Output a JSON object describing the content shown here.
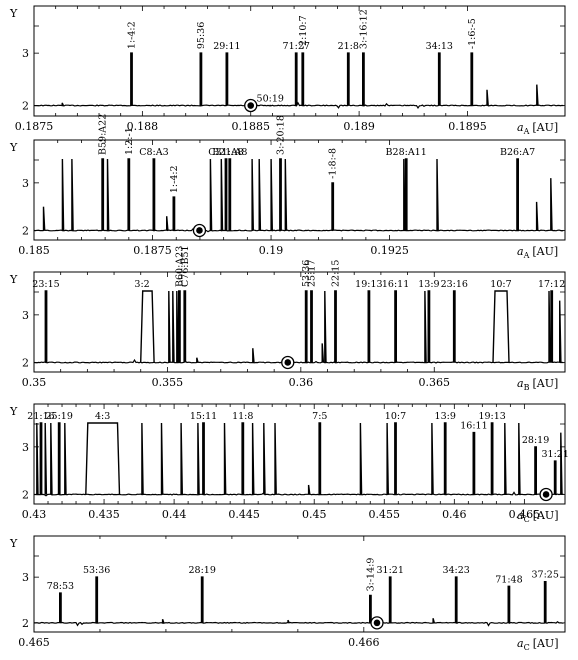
{
  "chart_data": [
    {
      "type": "line",
      "ylabel": "Υ",
      "xlabel": "a_A [AU]",
      "xlabel_main": "a",
      "xlabel_sub": "A",
      "xlabel_unit": "[AU]",
      "xlim": [
        0.1875,
        0.18995
      ],
      "ylim": [
        1.8,
        3.9
      ],
      "xticks": [
        0.1875,
        0.188,
        0.1885,
        0.189,
        0.1895
      ],
      "xtick_labels": [
        "0.1875",
        "0.188",
        "0.1885",
        "0.189",
        "0.1895"
      ],
      "yticks": [
        2,
        3
      ],
      "ytick_labels": [
        "2",
        "3"
      ],
      "circle": {
        "x": 0.1885,
        "y": 2.0
      },
      "resonances": [
        {
          "label": "1:-4:2",
          "x": 0.18795,
          "y": 3.0,
          "rotate": true
        },
        {
          "label": "95:36",
          "x": 0.18827,
          "y": 3.0,
          "rotate": true
        },
        {
          "label": "29:11",
          "x": 0.18839,
          "y": 3.0,
          "rotate": false
        },
        {
          "label": "50:19",
          "x": 0.18859,
          "y": 2.0,
          "rotate": false
        },
        {
          "label": "71:27",
          "x": 0.18871,
          "y": 3.0,
          "rotate": false
        },
        {
          "label": "-2:10:7",
          "x": 0.18874,
          "y": 3.0,
          "rotate": true
        },
        {
          "label": "21:8",
          "x": 0.18895,
          "y": 3.0,
          "rotate": false
        },
        {
          "label": "3:-16:12",
          "x": 0.18902,
          "y": 3.0,
          "rotate": true
        },
        {
          "label": "34:13",
          "x": 0.18937,
          "y": 3.0,
          "rotate": false
        },
        {
          "label": "-1:6:-5",
          "x": 0.18952,
          "y": 3.0,
          "rotate": true
        }
      ],
      "minor_spikes": [
        {
          "x": 0.18959,
          "y": 2.3
        },
        {
          "x": 0.18982,
          "y": 2.4
        },
        {
          "x": 0.18763,
          "y": 2.05
        }
      ]
    },
    {
      "type": "line",
      "ylabel": "Υ",
      "xlabel": "a_A [AU]",
      "xlabel_main": "a",
      "xlabel_sub": "A",
      "xlabel_unit": "[AU]",
      "xlim": [
        0.185,
        0.1962
      ],
      "ylim": [
        1.8,
        3.9
      ],
      "xticks": [
        0.185,
        0.1875,
        0.19,
        0.1925
      ],
      "xtick_labels": [
        "0.185",
        "0.1875",
        "0.19",
        "0.1925"
      ],
      "yticks": [
        2,
        3
      ],
      "ytick_labels": [
        "2",
        "3"
      ],
      "circle": {
        "x": 0.18849,
        "y": 2.0
      },
      "resonances": [
        {
          "label": "B59:A22",
          "x": 0.18645,
          "y": 3.5,
          "rotate": true
        },
        {
          "label": "1:2:-1",
          "x": 0.187,
          "y": 3.5,
          "rotate": true
        },
        {
          "label": "C8:A3",
          "x": 0.18753,
          "y": 3.5,
          "rotate": false
        },
        {
          "label": "1:-4:2",
          "x": 0.18795,
          "y": 2.7,
          "rotate": true
        },
        {
          "label": "C31:A8",
          "x": 0.18905,
          "y": 3.5,
          "rotate": false
        },
        {
          "label": "B21:A8",
          "x": 0.18913,
          "y": 3.5,
          "rotate": false
        },
        {
          "label": "3:-20:18",
          "x": 0.1902,
          "y": 3.5,
          "rotate": true
        },
        {
          "label": "-1:8:-8",
          "x": 0.1913,
          "y": 3.0,
          "rotate": true
        },
        {
          "label": "B28:A11",
          "x": 0.19285,
          "y": 3.5,
          "rotate": false
        },
        {
          "label": "B26:A7",
          "x": 0.1952,
          "y": 3.5,
          "rotate": false
        }
      ],
      "minor_spikes": [
        {
          "x": 0.1856,
          "y": 3.5
        },
        {
          "x": 0.1858,
          "y": 3.5
        },
        {
          "x": 0.1852,
          "y": 2.5
        },
        {
          "x": 0.18655,
          "y": 3.5
        },
        {
          "x": 0.18872,
          "y": 3.5
        },
        {
          "x": 0.18895,
          "y": 3.5
        },
        {
          "x": 0.1896,
          "y": 3.5
        },
        {
          "x": 0.18975,
          "y": 3.5
        },
        {
          "x": 0.19,
          "y": 3.5
        },
        {
          "x": 0.1903,
          "y": 3.5
        },
        {
          "x": 0.1928,
          "y": 3.5
        },
        {
          "x": 0.1935,
          "y": 3.5
        },
        {
          "x": 0.1956,
          "y": 2.6
        },
        {
          "x": 0.1959,
          "y": 3.1
        },
        {
          "x": 0.1878,
          "y": 2.3
        }
      ]
    },
    {
      "type": "line",
      "ylabel": "Υ",
      "xlabel": "a_B [AU]",
      "xlabel_main": "a",
      "xlabel_sub": "B",
      "xlabel_unit": "[AU]",
      "xlim": [
        0.35,
        0.3699
      ],
      "ylim": [
        1.8,
        3.9
      ],
      "xticks": [
        0.35,
        0.355,
        0.36,
        0.365
      ],
      "xtick_labels": [
        "0.35",
        "0.355",
        "0.36",
        "0.365"
      ],
      "yticks": [
        2,
        3
      ],
      "ytick_labels": [
        "2",
        "3"
      ],
      "circle": {
        "x": 0.35951,
        "y": 2.0
      },
      "resonances": [
        {
          "label": "23:15",
          "x": 0.35045,
          "y": 3.5,
          "rotate": false
        },
        {
          "label": "3:2",
          "x": 0.35405,
          "y": 3.5,
          "rotate": false,
          "plateau": [
            0.354,
            0.3545
          ]
        },
        {
          "label": "B60:A23",
          "x": 0.35545,
          "y": 3.5,
          "rotate": true
        },
        {
          "label": "C76:B51",
          "x": 0.35565,
          "y": 3.5,
          "rotate": true
        },
        {
          "label": "53:36",
          "x": 0.3602,
          "y": 3.5,
          "rotate": true
        },
        {
          "label": "25:17",
          "x": 0.3604,
          "y": 3.5,
          "rotate": true
        },
        {
          "label": "22:15",
          "x": 0.3613,
          "y": 3.5,
          "rotate": true
        },
        {
          "label": "19:13",
          "x": 0.36255,
          "y": 3.5,
          "rotate": false
        },
        {
          "label": "16:11",
          "x": 0.36355,
          "y": 3.5,
          "rotate": false
        },
        {
          "label": "13:9",
          "x": 0.3648,
          "y": 3.5,
          "rotate": false
        },
        {
          "label": "23:16",
          "x": 0.36575,
          "y": 3.5,
          "rotate": false
        },
        {
          "label": "10:7",
          "x": 0.3675,
          "y": 3.5,
          "rotate": false,
          "plateau": [
            0.3672,
            0.3678
          ]
        },
        {
          "label": "17:12",
          "x": 0.3694,
          "y": 3.5,
          "rotate": false
        }
      ],
      "minor_spikes": [
        {
          "x": 0.35505,
          "y": 3.5
        },
        {
          "x": 0.3552,
          "y": 3.5
        },
        {
          "x": 0.35535,
          "y": 3.5
        },
        {
          "x": 0.3609,
          "y": 3.5
        },
        {
          "x": 0.3608,
          "y": 2.4
        },
        {
          "x": 0.36465,
          "y": 3.5
        },
        {
          "x": 0.3693,
          "y": 3.5
        },
        {
          "x": 0.3697,
          "y": 3.3
        },
        {
          "x": 0.3561,
          "y": 2.1
        },
        {
          "x": 0.3582,
          "y": 2.3
        }
      ]
    },
    {
      "type": "line",
      "ylabel": "Υ",
      "xlabel": "a_C [AU]",
      "xlabel_main": "a",
      "xlabel_sub": "C",
      "xlabel_unit": "[AU]",
      "xlim": [
        0.43,
        0.4679
      ],
      "ylim": [
        1.8,
        3.9
      ],
      "xticks": [
        0.43,
        0.435,
        0.44,
        0.445,
        0.45,
        0.455,
        0.46,
        0.465
      ],
      "xtick_labels": [
        "0.43",
        "0.435",
        "0.44",
        "0.445",
        "0.45",
        "0.455",
        "0.46",
        "0.465"
      ],
      "yticks": [
        2,
        3
      ],
      "ytick_labels": [
        "2",
        "3"
      ],
      "circle": {
        "x": 0.46655,
        "y": 2.0
      },
      "resonances": [
        {
          "label": "21:16",
          "x": 0.4305,
          "y": 3.5,
          "rotate": false
        },
        {
          "label": "25:19",
          "x": 0.4318,
          "y": 3.5,
          "rotate": false
        },
        {
          "label": "4:3",
          "x": 0.4349,
          "y": 3.5,
          "rotate": false,
          "plateau": [
            0.4337,
            0.4361
          ]
        },
        {
          "label": "15:11",
          "x": 0.4421,
          "y": 3.5,
          "rotate": false
        },
        {
          "label": "11:8",
          "x": 0.4449,
          "y": 3.5,
          "rotate": false
        },
        {
          "label": "7:5",
          "x": 0.4504,
          "y": 3.5,
          "rotate": false
        },
        {
          "label": "10:7",
          "x": 0.4558,
          "y": 3.5,
          "rotate": false
        },
        {
          "label": "13:9",
          "x": 0.45935,
          "y": 3.5,
          "rotate": false
        },
        {
          "label": "16:11",
          "x": 0.4614,
          "y": 3.3,
          "rotate": false
        },
        {
          "label": "19:13",
          "x": 0.4627,
          "y": 3.5,
          "rotate": false
        },
        {
          "label": "28:19",
          "x": 0.4658,
          "y": 3.0,
          "rotate": false
        },
        {
          "label": "31:21",
          "x": 0.4672,
          "y": 2.7,
          "rotate": false
        }
      ],
      "minor_spikes": [
        {
          "x": 0.4302,
          "y": 3.5
        },
        {
          "x": 0.4308,
          "y": 3.5
        },
        {
          "x": 0.4312,
          "y": 3.5
        },
        {
          "x": 0.4322,
          "y": 3.5
        },
        {
          "x": 0.4377,
          "y": 3.5
        },
        {
          "x": 0.4391,
          "y": 3.5
        },
        {
          "x": 0.4405,
          "y": 3.5
        },
        {
          "x": 0.4417,
          "y": 3.5
        },
        {
          "x": 0.4436,
          "y": 3.5
        },
        {
          "x": 0.4456,
          "y": 3.5
        },
        {
          "x": 0.4464,
          "y": 3.5
        },
        {
          "x": 0.4472,
          "y": 3.5
        },
        {
          "x": 0.4533,
          "y": 3.5
        },
        {
          "x": 0.4552,
          "y": 3.5
        },
        {
          "x": 0.4584,
          "y": 3.5
        },
        {
          "x": 0.4636,
          "y": 3.5
        },
        {
          "x": 0.4646,
          "y": 3.5
        },
        {
          "x": 0.4676,
          "y": 3.3
        },
        {
          "x": 0.4496,
          "y": 2.2
        }
      ]
    },
    {
      "type": "line",
      "ylabel": "Υ",
      "xlabel": "a_C [AU]",
      "xlabel_main": "a",
      "xlabel_sub": "C",
      "xlabel_unit": "[AU]",
      "xlim": [
        0.465,
        0.46661
      ],
      "ylim": [
        1.8,
        3.9
      ],
      "xticks": [
        0.465,
        0.466
      ],
      "xtick_labels": [
        "0.465",
        "0.466"
      ],
      "yticks": [
        2,
        3
      ],
      "ytick_labels": [
        "2",
        "3"
      ],
      "circle": {
        "x": 0.46604,
        "y": 2.0
      },
      "resonances": [
        {
          "label": "78:53",
          "x": 0.46508,
          "y": 2.65,
          "rotate": false
        },
        {
          "label": "53:36",
          "x": 0.46519,
          "y": 3.0,
          "rotate": false
        },
        {
          "label": "28:19",
          "x": 0.46551,
          "y": 3.0,
          "rotate": false
        },
        {
          "label": "3:-14:9",
          "x": 0.46602,
          "y": 2.6,
          "rotate": true
        },
        {
          "label": "31:21",
          "x": 0.46608,
          "y": 3.0,
          "rotate": false
        },
        {
          "label": "34:23",
          "x": 0.46628,
          "y": 3.0,
          "rotate": false
        },
        {
          "label": "71:48",
          "x": 0.46644,
          "y": 2.8,
          "rotate": false
        },
        {
          "label": "37:25",
          "x": 0.46655,
          "y": 2.9,
          "rotate": false
        }
      ],
      "minor_spikes": [
        {
          "x": 0.46539,
          "y": 2.08
        },
        {
          "x": 0.46577,
          "y": 2.06
        },
        {
          "x": 0.46621,
          "y": 2.1
        }
      ]
    }
  ]
}
